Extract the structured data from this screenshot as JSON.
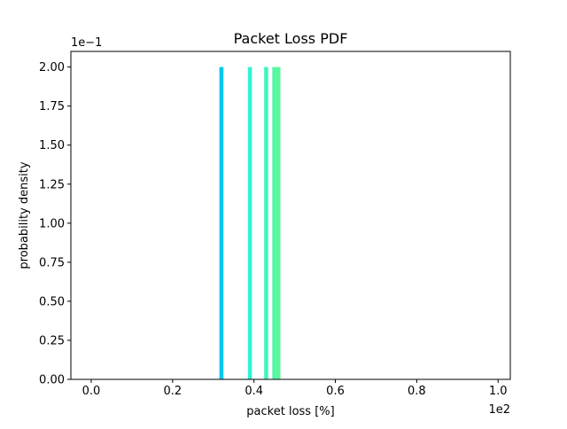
{
  "chart_data": {
    "type": "bar",
    "title": "Packet Loss PDF",
    "xlabel": "packet loss [%]",
    "ylabel": "probability density",
    "x_multiplier_label": "1e2",
    "y_multiplier_label": "1e−1",
    "xlim": [
      -0.05,
      1.03
    ],
    "ylim": [
      0,
      2.1
    ],
    "x_ticks": [
      0.0,
      0.2,
      0.4,
      0.6,
      0.8,
      1.0
    ],
    "x_tick_labels": [
      "0.0",
      "0.2",
      "0.4",
      "0.6",
      "0.8",
      "1.0"
    ],
    "y_ticks": [
      0.0,
      0.25,
      0.5,
      0.75,
      1.0,
      1.25,
      1.5,
      1.75,
      2.0
    ],
    "y_tick_labels": [
      "0.00",
      "0.25",
      "0.50",
      "0.75",
      "1.00",
      "1.25",
      "1.50",
      "1.75",
      "2.00"
    ],
    "grid": false,
    "bar_width": 0.01,
    "bars": [
      {
        "x": 0.32,
        "value": 2.0,
        "color": "#00c8f0"
      },
      {
        "x": 0.39,
        "value": 2.0,
        "color": "#33f0d6"
      },
      {
        "x": 0.43,
        "value": 2.0,
        "color": "#40f4c0"
      },
      {
        "x": 0.45,
        "value": 2.0,
        "color": "#55f6a6"
      },
      {
        "x": 0.46,
        "value": 2.0,
        "color": "#5cf89c"
      }
    ]
  }
}
